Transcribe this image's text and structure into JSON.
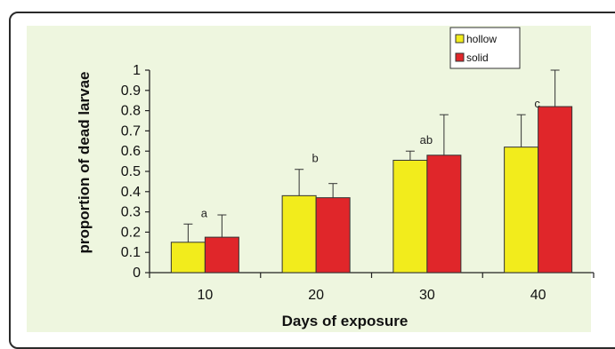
{
  "chart_data": {
    "type": "bar",
    "title": "",
    "xlabel": "Days of exposure",
    "ylabel": "proportion of dead larvae",
    "categories": [
      "10",
      "20",
      "30",
      "40"
    ],
    "ylim": [
      0,
      1
    ],
    "yticks": [
      "0",
      "0.1",
      "0.2",
      "0.3",
      "0.4",
      "0.5",
      "0.6",
      "0.7",
      "0.8",
      "0.9",
      "1"
    ],
    "series": [
      {
        "name": "hollow",
        "color": "#f2ec1c",
        "values": [
          0.15,
          0.38,
          0.555,
          0.62
        ],
        "error": [
          0.09,
          0.13,
          0.045,
          0.16
        ]
      },
      {
        "name": "solid",
        "color": "#e0262a",
        "values": [
          0.175,
          0.37,
          0.58,
          0.82
        ],
        "error": [
          0.11,
          0.07,
          0.2,
          0.19
        ]
      }
    ],
    "annotations": [
      "a",
      "b",
      "ab",
      "c"
    ],
    "legend_position": "top-right",
    "grid": false
  }
}
